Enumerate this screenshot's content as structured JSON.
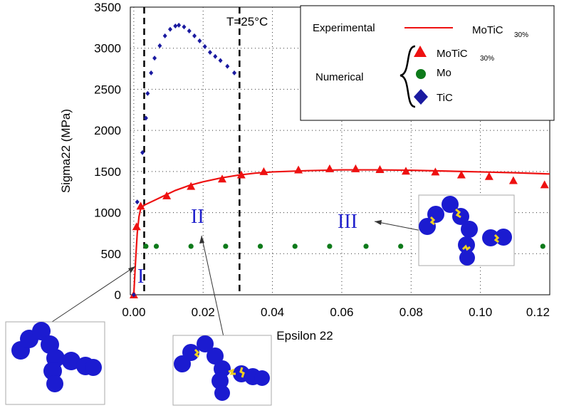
{
  "chart_data": {
    "type": "scatter",
    "title": "",
    "xlabel": "Epsilon 22",
    "ylabel": "Sigma22 (MPa)",
    "xlim": [
      -0.001,
      0.12
    ],
    "ylim": [
      0,
      3500
    ],
    "x_ticks": [
      "0.00",
      "0.02",
      "0.04",
      "0.06",
      "0.08",
      "0.10",
      "0.12"
    ],
    "y_ticks": [
      "0",
      "500",
      "1000",
      "1500",
      "2000",
      "2500",
      "3000",
      "3500"
    ],
    "grid": true,
    "temperature_label": "T=25°C",
    "vertical_lines": [
      0.003,
      0.0305
    ],
    "region_labels": [
      "I",
      "II",
      "III"
    ],
    "legend": {
      "experimental_label": "Experimental",
      "experimental_series": "MoTiC",
      "experimental_sub": "30%",
      "numerical_label": "Numerical",
      "entries": [
        {
          "name": "MoTiC",
          "sub": "30%",
          "marker": "triangle",
          "color": "#ee1111"
        },
        {
          "name": "Mo",
          "sub": "",
          "marker": "circle",
          "color": "#0d7a1a"
        },
        {
          "name": "TiC",
          "sub": "",
          "marker": "diamond",
          "color": "#1a1aa0"
        }
      ]
    },
    "series": [
      {
        "name": "MoTiC 30% (Experimental)",
        "kind": "line",
        "color": "#ee1111",
        "x": [
          0.0,
          0.0005,
          0.001,
          0.0015,
          0.002,
          0.003,
          0.005,
          0.008,
          0.012,
          0.016,
          0.02,
          0.025,
          0.03,
          0.035,
          0.04,
          0.05,
          0.06,
          0.07,
          0.08,
          0.09,
          0.1,
          0.11,
          0.12
        ],
        "y": [
          0,
          400,
          750,
          950,
          1050,
          1090,
          1130,
          1190,
          1270,
          1330,
          1375,
          1420,
          1455,
          1480,
          1495,
          1510,
          1520,
          1520,
          1515,
          1505,
          1495,
          1485,
          1470
        ]
      },
      {
        "name": "MoTiC 30% (Numerical)",
        "kind": "triangle",
        "color": "#ee1111",
        "x": [
          0.0,
          0.0008,
          0.002,
          0.0095,
          0.0165,
          0.0255,
          0.031,
          0.0375,
          0.0475,
          0.0565,
          0.064,
          0.071,
          0.0785,
          0.087,
          0.0945,
          0.1025,
          0.1095,
          0.1185
        ],
        "y": [
          0,
          830,
          1080,
          1205,
          1320,
          1410,
          1460,
          1500,
          1520,
          1535,
          1535,
          1525,
          1505,
          1495,
          1460,
          1440,
          1390,
          1340
        ]
      },
      {
        "name": "Mo",
        "kind": "circle",
        "color": "#0d7a1a",
        "x": [
          0.0035,
          0.0065,
          0.0165,
          0.0265,
          0.0365,
          0.0465,
          0.0565,
          0.067,
          0.077,
          0.087,
          0.097,
          0.1075,
          0.118
        ],
        "y": [
          590,
          590,
          590,
          590,
          590,
          590,
          590,
          590,
          590,
          590,
          590,
          590,
          590
        ]
      },
      {
        "name": "TiC",
        "kind": "diamond",
        "color": "#1a1aa0",
        "x": [
          0.0,
          0.001,
          0.0025,
          0.0035,
          0.004,
          0.005,
          0.006,
          0.0075,
          0.009,
          0.0105,
          0.012,
          0.013,
          0.0145,
          0.016,
          0.0175,
          0.019,
          0.0205,
          0.022,
          0.0235,
          0.025,
          0.027,
          0.029
        ],
        "y": [
          0,
          1130,
          1730,
          2150,
          2450,
          2700,
          2880,
          3030,
          3150,
          3230,
          3270,
          3280,
          3260,
          3210,
          3150,
          3090,
          3020,
          2950,
          2900,
          2850,
          2780,
          2700
        ]
      }
    ]
  }
}
